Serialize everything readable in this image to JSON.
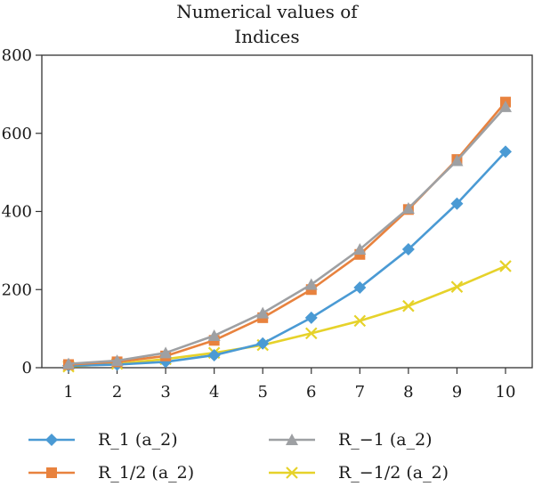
{
  "chart_data": {
    "type": "line",
    "title_lines": [
      "Numerical values of",
      "Indices"
    ],
    "xlabel": "",
    "ylabel": "",
    "x": [
      1,
      2,
      3,
      4,
      5,
      6,
      7,
      8,
      9,
      10
    ],
    "x_ticks": [
      "1",
      "2",
      "3",
      "4",
      "5",
      "6",
      "7",
      "8",
      "9",
      "10"
    ],
    "y_ticks": [
      "0",
      "200",
      "400",
      "600",
      "800"
    ],
    "ylim": [
      0,
      800
    ],
    "grid": false,
    "legend_placement": "bottom",
    "series": [
      {
        "name": "R_1 (a_2)",
        "color": "#4a9ad4",
        "marker": "diamond",
        "values": [
          5,
          8,
          15,
          32,
          62,
          128,
          205,
          303,
          420,
          553
        ]
      },
      {
        "name": "R_−1 (a_2)",
        "color": "#9ea0a3",
        "marker": "triangle",
        "values": [
          10,
          18,
          38,
          82,
          140,
          213,
          303,
          408,
          530,
          668
        ]
      },
      {
        "name": "R_1/2 (a_2)",
        "color": "#e8823e",
        "marker": "square",
        "values": [
          8,
          15,
          30,
          70,
          128,
          200,
          290,
          405,
          533,
          680
        ]
      },
      {
        "name": "R_−1/2 (a_2)",
        "color": "#e6d22a",
        "marker": "x",
        "values": [
          3,
          10,
          22,
          38,
          58,
          88,
          120,
          158,
          207,
          260
        ]
      }
    ]
  }
}
